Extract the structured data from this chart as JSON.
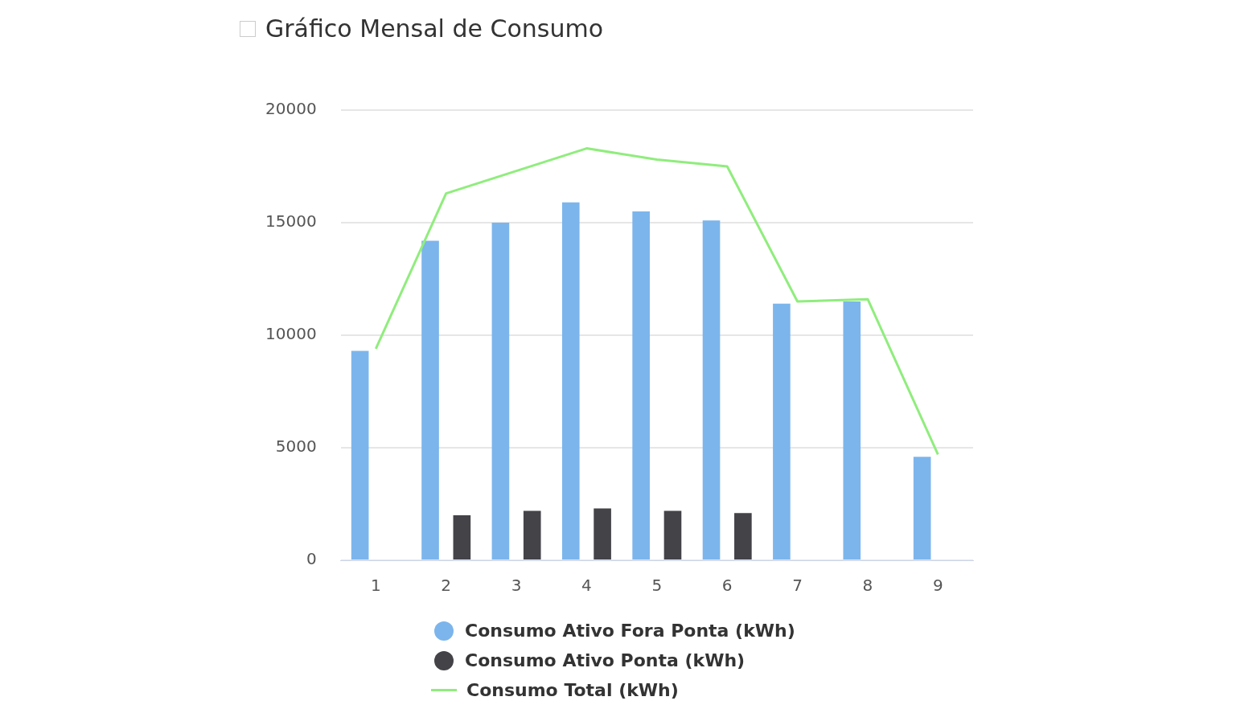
{
  "chart_data": {
    "type": "bar",
    "title": "Gráfico Mensal de Consumo",
    "categories": [
      "1",
      "2",
      "3",
      "4",
      "5",
      "6",
      "7",
      "8",
      "9"
    ],
    "ylim": [
      0,
      20000
    ],
    "yticks": [
      0,
      5000,
      10000,
      15000,
      20000
    ],
    "grid": "y",
    "legend": "bottom",
    "series": [
      {
        "name": "Consumo Ativo Fora Ponta (kWh)",
        "color": "#7cb5ec",
        "values": [
          9300,
          14200,
          15000,
          15900,
          15500,
          15100,
          11400,
          11500,
          4600
        ]
      },
      {
        "name": "Consumo Ativo Ponta (kWh)",
        "color": "#434348",
        "values": [
          null,
          2000,
          2200,
          2300,
          2200,
          2100,
          null,
          null,
          null
        ]
      },
      {
        "name": "Consumo Total (kWh)",
        "type": "line",
        "color": "#90ed7d",
        "marker": "none",
        "values": [
          9400,
          16300,
          17300,
          18300,
          17800,
          17500,
          11500,
          11600,
          4700
        ]
      }
    ]
  }
}
